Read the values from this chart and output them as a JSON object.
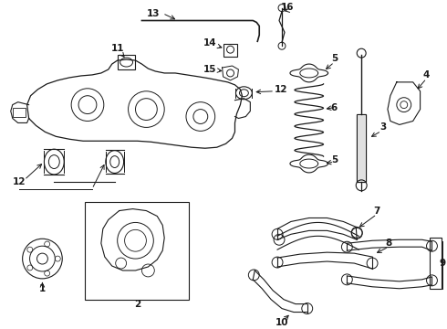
{
  "bg_color": "#ffffff",
  "line_color": "#1a1a1a",
  "fig_width": 4.9,
  "fig_height": 3.6,
  "dpi": 100,
  "text_fontsize": 7.0,
  "label_fontsize": 7.5
}
